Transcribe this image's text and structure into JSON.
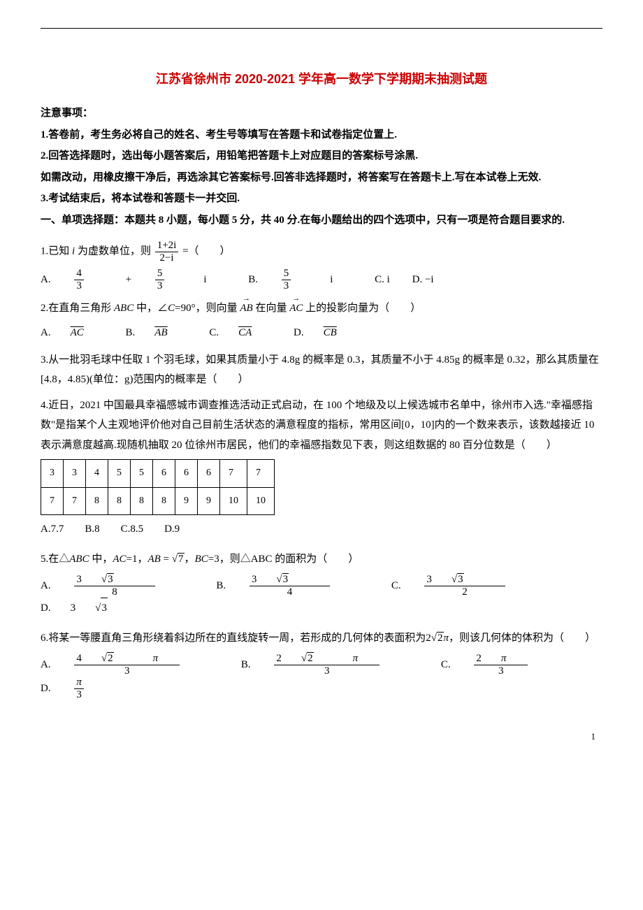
{
  "title": "江苏省徐州市 2020-2021 学年高一数学下学期期末抽测试题",
  "notice_heading": "注意事项：",
  "notice_1": "1.答卷前，考生务必将自己的姓名、考生号等填写在答题卡和试卷指定位置上.",
  "notice_2": "2.回答选择题时，选出每小题答案后，用铅笔把答题卡上对应题目的答案标号涂黑.",
  "notice_3": "如需改动，用橡皮擦干净后，再选涂其它答案标号.回答非选择题时，将答案写在答题卡上.写在本试卷上无效.",
  "notice_4": "3.考试结束后，将本试卷和答题卡一并交回.",
  "section_1": "一、单项选择题：本题共 8 小题，每小题 5 分，共 40 分.在每小题给出的四个选项中，只有一项是符合题目要求的.",
  "q1": {
    "stem_pre": "1.已知 ",
    "stem_i": "i",
    "stem_mid": " 为虚数单位，则",
    "frac_num": "1+2i",
    "frac_den": "2−i",
    "stem_post": " =（　　）",
    "optA_pre": "A.",
    "optA_n1": "4",
    "optA_d1": "3",
    "optA_plus": "+",
    "optA_n2": "5",
    "optA_d2": "3",
    "optA_i": "i",
    "optB_pre": "B.",
    "optB_n": "5",
    "optB_d": "3",
    "optB_i": "i",
    "optC": "C. i",
    "optD": "D. −i"
  },
  "q2": {
    "stem_pre": "2.在直角三角形 ",
    "abc": "ABC",
    "stem_mid": " 中，∠",
    "c": "C",
    "stem_mid2": "=90°，则向量 ",
    "ab": "AB",
    "stem_mid3": " 在向量 ",
    "ac": "AC",
    "stem_post": " 上的投影向量为（　　）",
    "optA": "A. ",
    "optA_v": "AC",
    "optB": "B. ",
    "optB_v": "AB",
    "optC": "C. ",
    "optC_v": "CA",
    "optD": "D. ",
    "optD_v": "CB"
  },
  "q3": {
    "stem": "3.从一批羽毛球中任取 1 个羽毛球，如果其质量小于 4.8g 的概率是 0.3，其质量不小于 4.85g 的概率是 0.32，那么其质量在[4.8，4.85)(单位：g)范围内的概率是（　　）"
  },
  "q4": {
    "stem": "4.近日，2021 中国最具幸福感城市调查推选活动正式启动，在 100 个地级及以上候选城市名单中，徐州市入选.\"幸福感指数\"是指某个人主观地评价他对自己目前生活状态的满意程度的指标，常用区间[0，10]内的一个数来表示，该数越接近 10 表示满意度越高.现随机抽取 20 位徐州市居民，他们的幸福感指数见下表，则这组数据的 80 百分位数是（　　）",
    "table": {
      "rows": [
        [
          "3",
          "3",
          "4",
          "5",
          "5",
          "6",
          "6",
          "6",
          "7",
          "7"
        ],
        [
          "7",
          "7",
          "8",
          "8",
          "8",
          "8",
          "9",
          "9",
          "10",
          "10"
        ]
      ]
    },
    "opts": "A.7.7　　B.8　　C.8.5　　D.9"
  },
  "q5": {
    "stem_pre": "5.在△",
    "abc": "ABC",
    "stem_mid": " 中，",
    "ac": "AC",
    "stem_mid2": "=1，",
    "ab": "AB",
    "stem_eq": " = ",
    "sqrt7": "7",
    "stem_mid3": "，",
    "bc": "BC",
    "stem_post": "=3，则△ABC 的面积为（　　）",
    "optA": "A.",
    "optA_n": "3",
    "optA_s": "3",
    "optA_d": "8",
    "optB": "B.",
    "optB_n": "3",
    "optB_s": "3",
    "optB_d": "4",
    "optC": "C.",
    "optC_n": "3",
    "optC_s": "3",
    "optC_d": "2",
    "optD_pre": "D. ",
    "optD_n": "3",
    "optD_s": "3"
  },
  "q6": {
    "stem_pre": "6.将某一等腰直角三角形绕着斜边所在的直线旋转一周，若形成的几何体的表面积为",
    "coef": "2",
    "sqrt2": "2",
    "pi": "π",
    "stem_post": "，则该几何体的体积为（　　）",
    "optA": "A.",
    "optA_n_c": "4",
    "optA_n_s": "2",
    "optA_n_p": "π",
    "optA_d": "3",
    "optB": "B.",
    "optB_n_c": "2",
    "optB_n_s": "2",
    "optB_n_p": "π",
    "optB_d": "3",
    "optC": "C.",
    "optC_n_c": "2",
    "optC_n_p": "π",
    "optC_d": "3",
    "optD": "D.",
    "optD_n": "π",
    "optD_d": "3"
  },
  "page_number": "1"
}
